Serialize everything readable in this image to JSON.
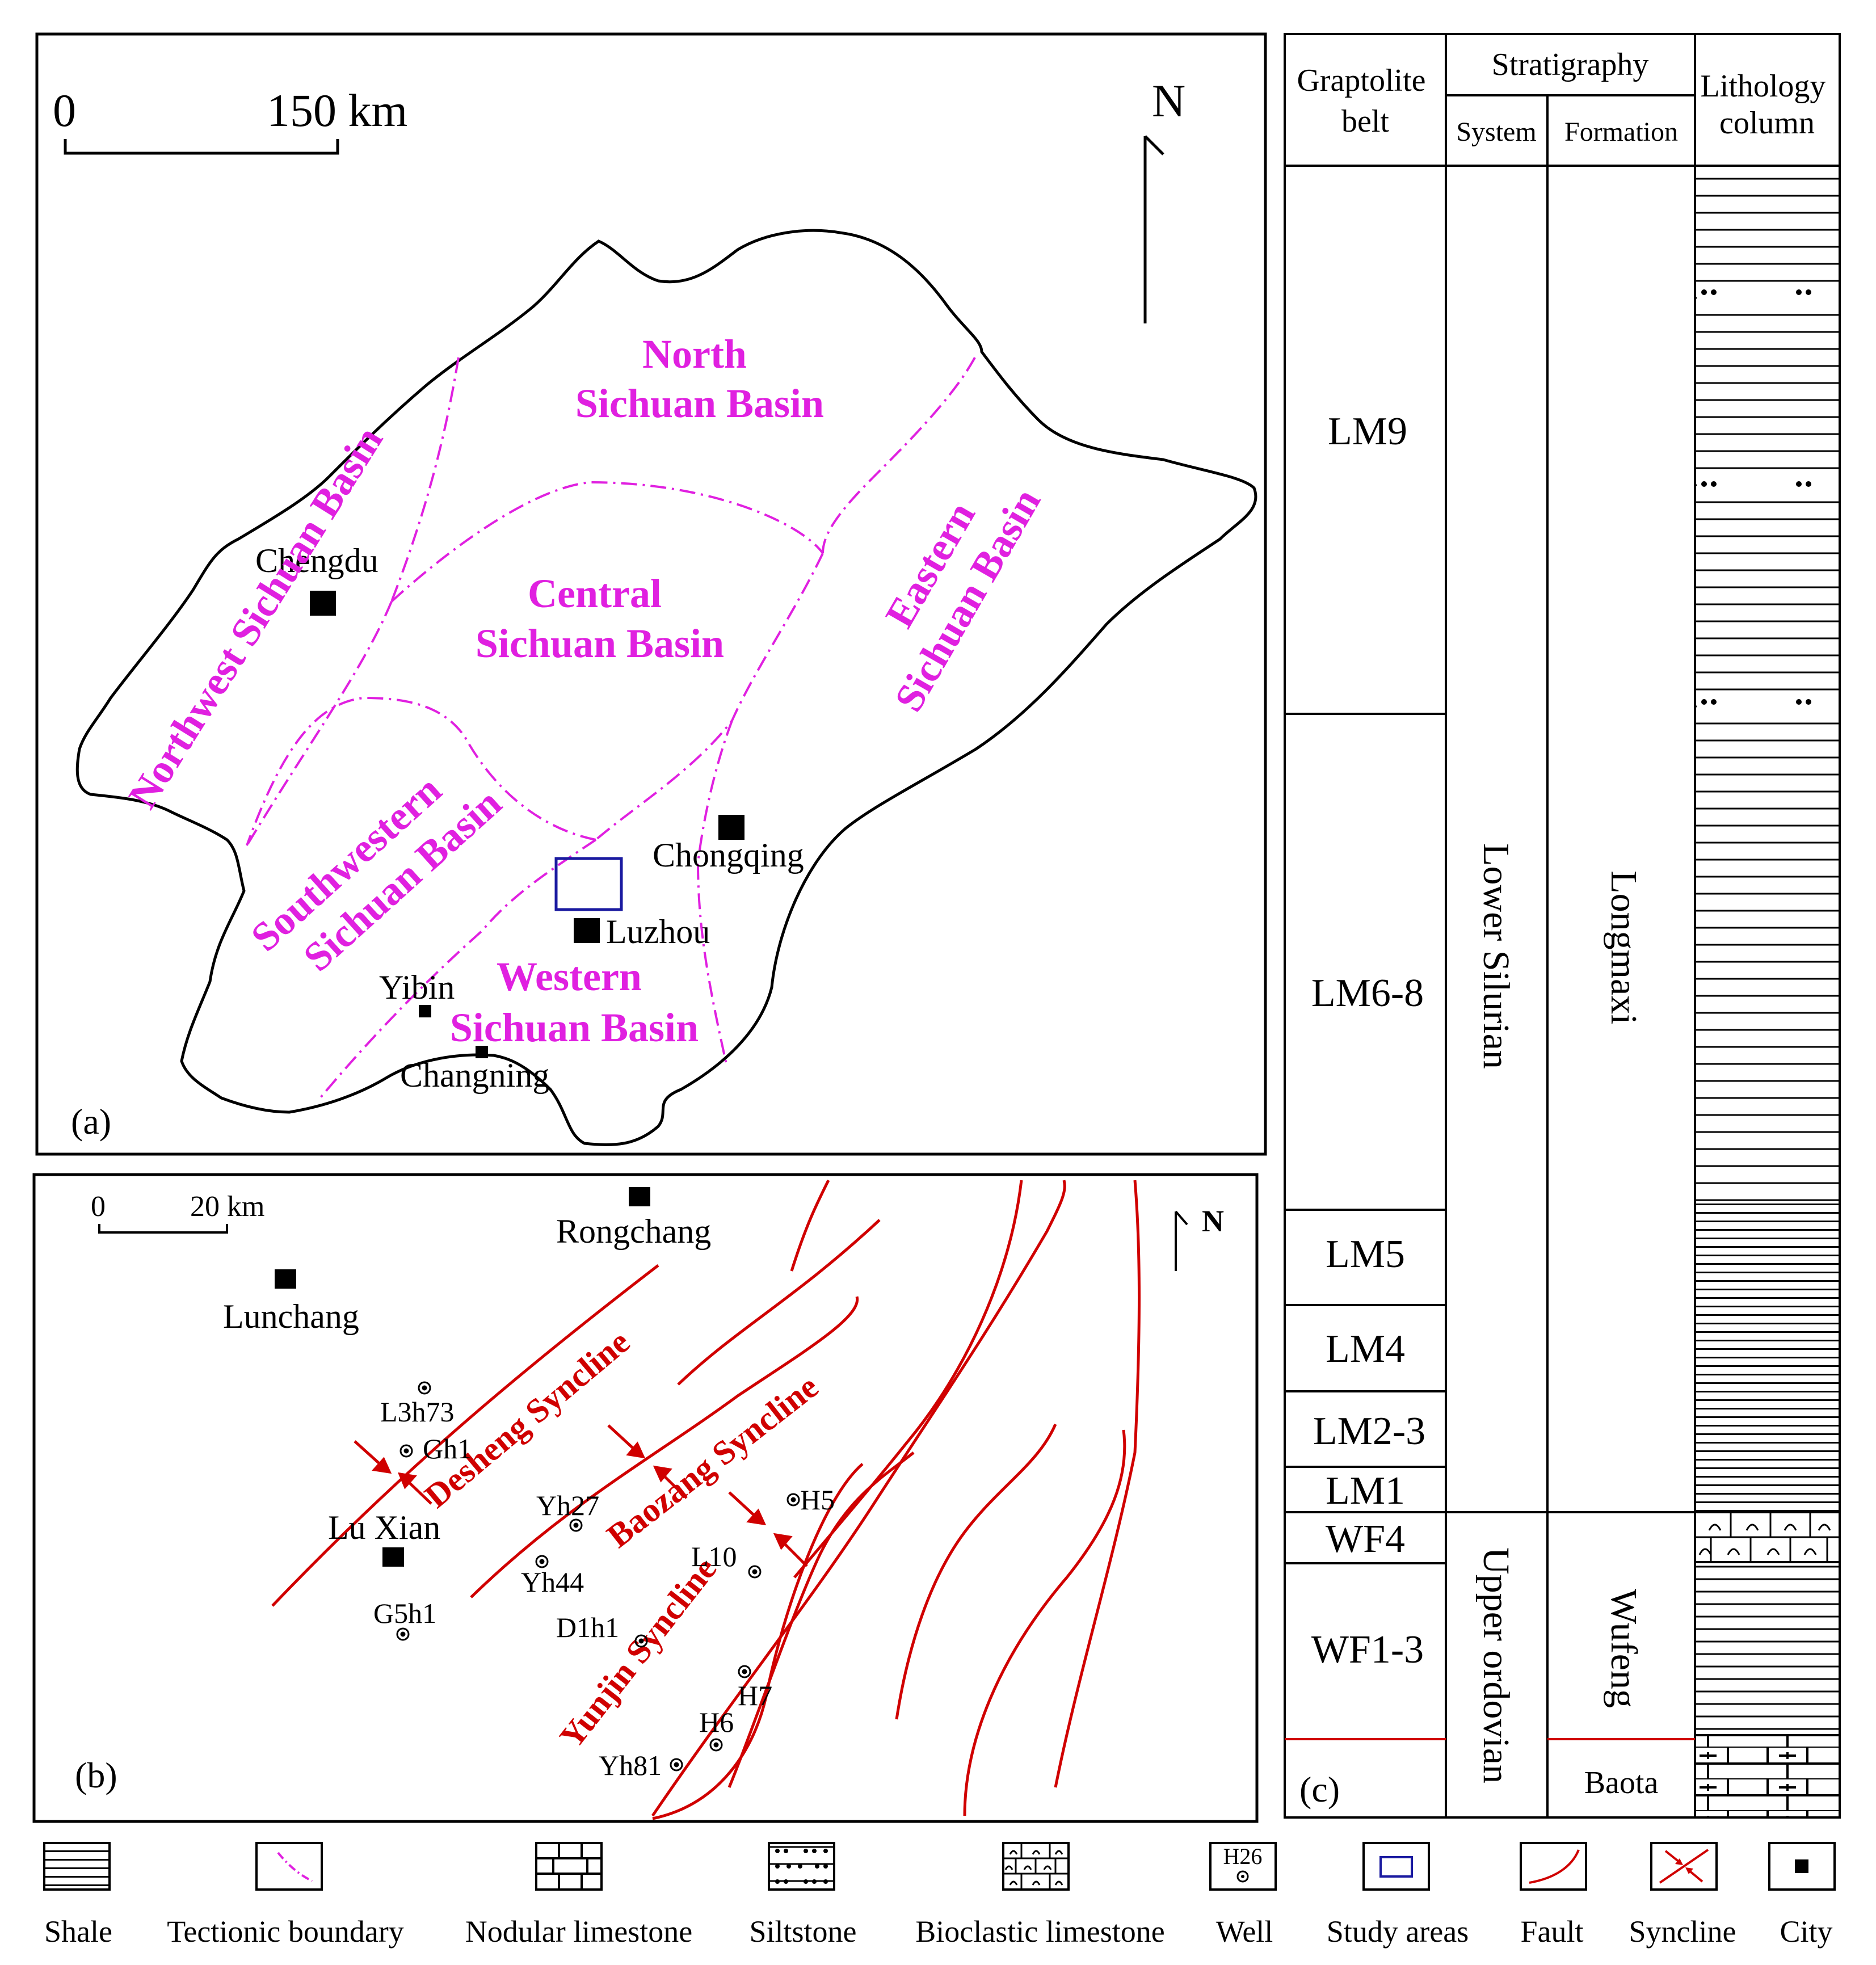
{
  "panel_a": {
    "tag": "(a)",
    "scale": {
      "zero": "0",
      "max": "150 km"
    },
    "north": "N",
    "regions": {
      "north_l1": "North",
      "north_l2": "Sichuan Basin",
      "central_l1": "Central",
      "central_l2": "Sichuan  Basin",
      "northwest": "Northwest Sichuan Basin",
      "eastern_l1": "Eastern",
      "eastern_l2": "Sichuan Basin",
      "southwestern_l1": "Southwestern",
      "southwestern_l2": "Sichuan Basin",
      "western_l1": "Western",
      "western_l2": "Sichuan Basin"
    },
    "cities": {
      "chengdu": "Chengdu",
      "chongqing": "Chongqing",
      "luzhou": "Luzhou",
      "yibin": "Yibin",
      "changning": "Changning"
    },
    "colors": {
      "boundary": "#e020e0",
      "study_area": "#1a1aa0"
    }
  },
  "panel_b": {
    "tag": "(b)",
    "scale": {
      "zero": "0",
      "max": "20 km"
    },
    "north": "N",
    "towns": {
      "rongchang": "Rongchang",
      "lunchang": "Lunchang",
      "luxian": "Lu  Xian"
    },
    "synclines": {
      "desheng": "Desheng Syncline",
      "baozang": "Baozang Syncline",
      "yunjin": "Yunjin Syncline"
    },
    "wells": {
      "l3h73": "L3h73",
      "gh1": "Gh1",
      "g5h1": "G5h1",
      "yh27": "Yh27",
      "yh44": "Yh44",
      "d1h1": "D1h1",
      "l10": "L10",
      "h5": "H5",
      "h7": "H7",
      "h6": "H6",
      "yh81": "Yh81"
    },
    "colors": {
      "fault": "#d00000"
    }
  },
  "panel_c": {
    "tag": "(c)",
    "headers": {
      "graptolite": [
        "Graptolite",
        "belt"
      ],
      "stratigraphy": "Stratigraphy",
      "system": "System",
      "formation": "Formation",
      "lithology": [
        "Lithology",
        "column"
      ]
    },
    "belts": [
      "LM9",
      "LM6-8",
      "LM5",
      "LM4",
      "LM2-3",
      "LM1",
      "WF4",
      "WF1-3"
    ],
    "systems": {
      "lower": "Lower Silurian",
      "upper": "Upper ordovian"
    },
    "formations": {
      "longmaxi": "Longmaxi",
      "wufeng": "Wufeng",
      "baota": "Baota"
    }
  },
  "legend": [
    {
      "label": "Shale",
      "symbol": "shale-pattern"
    },
    {
      "label": "Tectionic boundary",
      "symbol": "dash-dot-curve"
    },
    {
      "label": "Nodular limestone",
      "symbol": "brick-pattern"
    },
    {
      "label": "Siltstone",
      "symbol": "dot-pattern"
    },
    {
      "label": "Bioclastic limestone",
      "symbol": "shell-pattern"
    },
    {
      "label": "Well",
      "symbol": "well-circle",
      "sample": "H26"
    },
    {
      "label": "Study  areas",
      "symbol": "blue-rectangle"
    },
    {
      "label": "Fault",
      "symbol": "red-curve"
    },
    {
      "label": "Syncline",
      "symbol": "syncline-arrows"
    },
    {
      "label": "City",
      "symbol": "black-square"
    }
  ]
}
